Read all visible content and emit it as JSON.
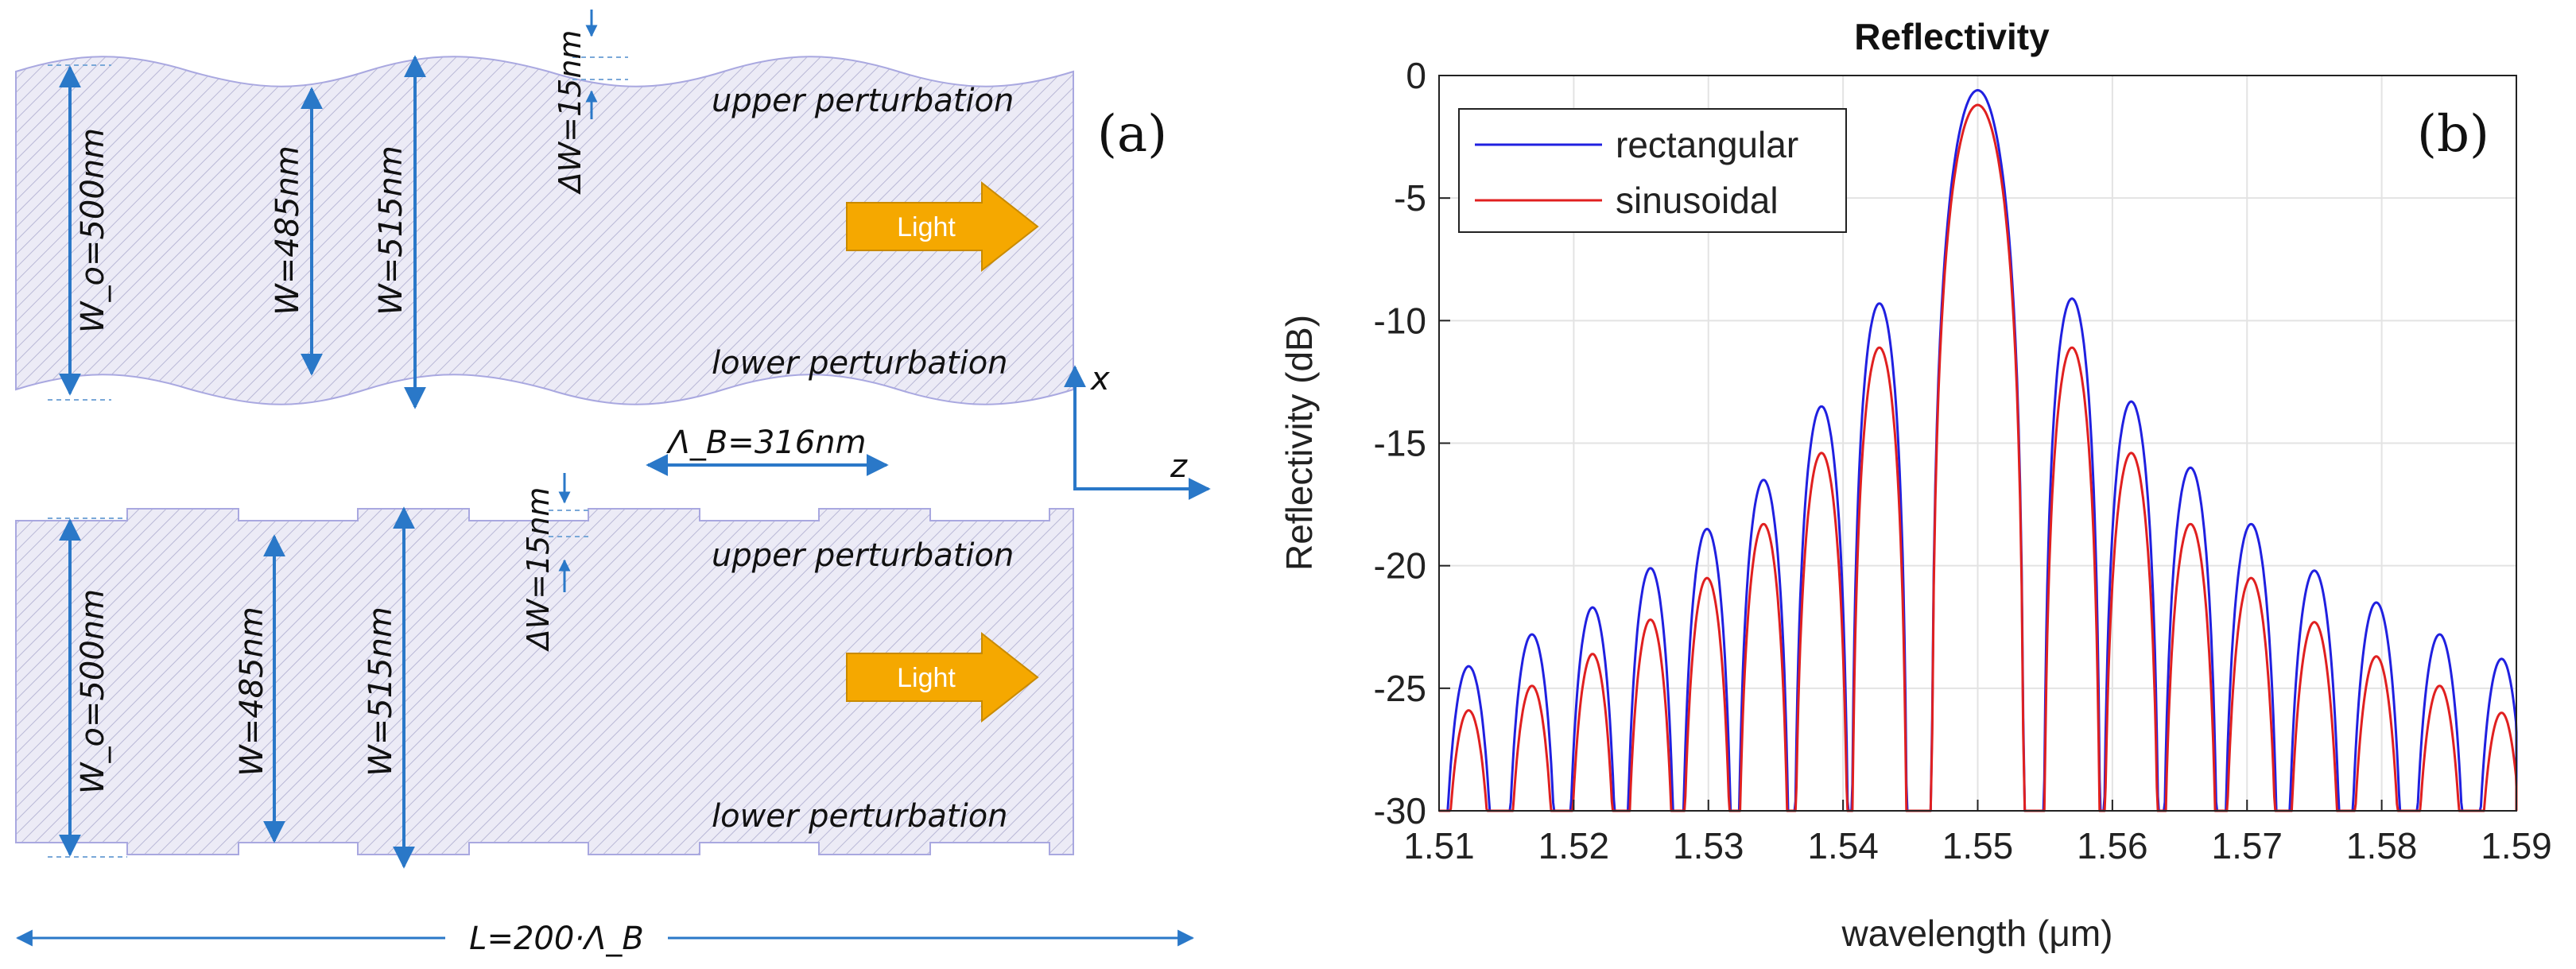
{
  "panel_a": {
    "label": "(a)",
    "light": "Light",
    "axis_x": "x",
    "axis_z": "z",
    "period": "Λ_B=316nm",
    "length": "L=200·Λ_B",
    "top": {
      "upper": "upper perturbation",
      "lower": "lower perturbation",
      "w0": "W_o=500nm",
      "w485": "W=485nm",
      "w515": "W=515nm",
      "dw": "ΔW=15nm"
    },
    "bottom": {
      "upper": "upper perturbation",
      "lower": "lower perturbation",
      "w0": "W_o=500nm",
      "w485": "W=485nm",
      "w515": "W=515nm",
      "dw": "ΔW=15nm"
    }
  },
  "panel_b": {
    "label": "(b)"
  },
  "chart_data": {
    "type": "line",
    "title": "Reflectivity",
    "xlabel": "wavelength (μm)",
    "ylabel": "Reflectivity (dB)",
    "xlim": [
      1.51,
      1.59
    ],
    "ylim": [
      -30,
      0
    ],
    "xticks": [
      "1.51",
      "1.52",
      "1.53",
      "1.54",
      "1.55",
      "1.56",
      "1.57",
      "1.58",
      "1.59"
    ],
    "yticks": [
      "0",
      "-5",
      "-10",
      "-15",
      "-20",
      "-25",
      "-30"
    ],
    "grid": true,
    "legend_position": "top-left",
    "series": [
      {
        "name": "rectangular",
        "color": "#2020e0",
        "peaks": [
          {
            "x": 1.5122,
            "y": -24.1
          },
          {
            "x": 1.5169,
            "y": -22.8
          },
          {
            "x": 1.5214,
            "y": -21.7
          },
          {
            "x": 1.5257,
            "y": -20.1
          },
          {
            "x": 1.5299,
            "y": -18.5
          },
          {
            "x": 1.5341,
            "y": -16.5
          },
          {
            "x": 1.5384,
            "y": -13.5
          },
          {
            "x": 1.5427,
            "y": -9.3
          },
          {
            "x": 1.55,
            "y": -0.6
          },
          {
            "x": 1.557,
            "y": -9.1
          },
          {
            "x": 1.5614,
            "y": -13.3
          },
          {
            "x": 1.5658,
            "y": -16.0
          },
          {
            "x": 1.5703,
            "y": -18.3
          },
          {
            "x": 1.575,
            "y": -20.2
          },
          {
            "x": 1.5796,
            "y": -21.5
          },
          {
            "x": 1.5843,
            "y": -22.8
          },
          {
            "x": 1.5889,
            "y": -23.8
          }
        ]
      },
      {
        "name": "sinusoidal",
        "color": "#e02020",
        "peaks": [
          {
            "x": 1.5122,
            "y": -25.9
          },
          {
            "x": 1.5169,
            "y": -24.9
          },
          {
            "x": 1.5214,
            "y": -23.6
          },
          {
            "x": 1.5257,
            "y": -22.2
          },
          {
            "x": 1.5299,
            "y": -20.5
          },
          {
            "x": 1.5341,
            "y": -18.3
          },
          {
            "x": 1.5384,
            "y": -15.4
          },
          {
            "x": 1.5427,
            "y": -11.1
          },
          {
            "x": 1.55,
            "y": -1.2
          },
          {
            "x": 1.557,
            "y": -11.1
          },
          {
            "x": 1.5614,
            "y": -15.4
          },
          {
            "x": 1.5658,
            "y": -18.3
          },
          {
            "x": 1.5703,
            "y": -20.5
          },
          {
            "x": 1.575,
            "y": -22.3
          },
          {
            "x": 1.5796,
            "y": -23.7
          },
          {
            "x": 1.5843,
            "y": -24.9
          },
          {
            "x": 1.5889,
            "y": -26.0
          }
        ]
      }
    ]
  }
}
